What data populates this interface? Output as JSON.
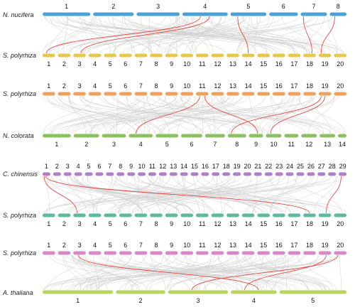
{
  "panels": [
    {
      "top": {
        "species": "N. nucifera",
        "labels": [
          "1",
          "2",
          "3",
          "4",
          "5",
          "6",
          "7",
          "8"
        ],
        "color": "#4aa3d8",
        "label_pos": "above"
      },
      "bottom": {
        "species": "S. polyrhiza",
        "labels": [
          "1",
          "2",
          "3",
          "4",
          "5",
          "6",
          "7",
          "8",
          "9",
          "10",
          "11",
          "12",
          "13",
          "14",
          "15",
          "16",
          "17",
          "18",
          "19",
          "20"
        ],
        "color": "#e6c84c",
        "label_pos": "below"
      }
    },
    {
      "top": {
        "species": "S. polyrhiza",
        "labels": [
          "1",
          "2",
          "3",
          "4",
          "5",
          "6",
          "7",
          "8",
          "9",
          "10",
          "11",
          "12",
          "13",
          "14",
          "15",
          "16",
          "17",
          "18",
          "19",
          "20"
        ],
        "color": "#f0a05a",
        "label_pos": "above"
      },
      "bottom": {
        "species": "N. colorata",
        "labels": [
          "1",
          "2",
          "3",
          "4",
          "5",
          "6",
          "7",
          "8",
          "9",
          "10",
          "11",
          "12",
          "13",
          "14"
        ],
        "color": "#8cc063",
        "label_pos": "below"
      }
    },
    {
      "top": {
        "species": "C. chinensis",
        "labels": [
          "1",
          "2",
          "3",
          "4",
          "5",
          "6",
          "7",
          "8",
          "9",
          "10",
          "11",
          "12",
          "13",
          "14",
          "15",
          "16",
          "17",
          "18",
          "19",
          "20",
          "21",
          "22",
          "23",
          "24",
          "25",
          "26",
          "27",
          "28",
          "29"
        ],
        "color": "#b07fc6",
        "label_pos": "above"
      },
      "bottom": {
        "species": "S. polyrhiza",
        "labels": [
          "1",
          "2",
          "3",
          "4",
          "5",
          "6",
          "7",
          "8",
          "9",
          "10",
          "11",
          "12",
          "13",
          "14",
          "15",
          "16",
          "17",
          "18",
          "19",
          "20"
        ],
        "color": "#5fb8a0",
        "label_pos": "below"
      }
    },
    {
      "top": {
        "species": "S. polyrhiza",
        "labels": [
          "1",
          "2",
          "3",
          "4",
          "5",
          "6",
          "7",
          "8",
          "9",
          "10",
          "11",
          "12",
          "13",
          "14",
          "15",
          "16",
          "17",
          "18",
          "19",
          "20"
        ],
        "color": "#d987c8",
        "label_pos": "above"
      },
      "bottom": {
        "species": "A. thaliana",
        "labels": [
          "1",
          "2",
          "3",
          "4",
          "5"
        ],
        "color": "#b8d45a",
        "label_pos": "below"
      }
    }
  ],
  "colors": {
    "background_links": "#cfcfcf",
    "highlight_links": "#e8382e"
  }
}
